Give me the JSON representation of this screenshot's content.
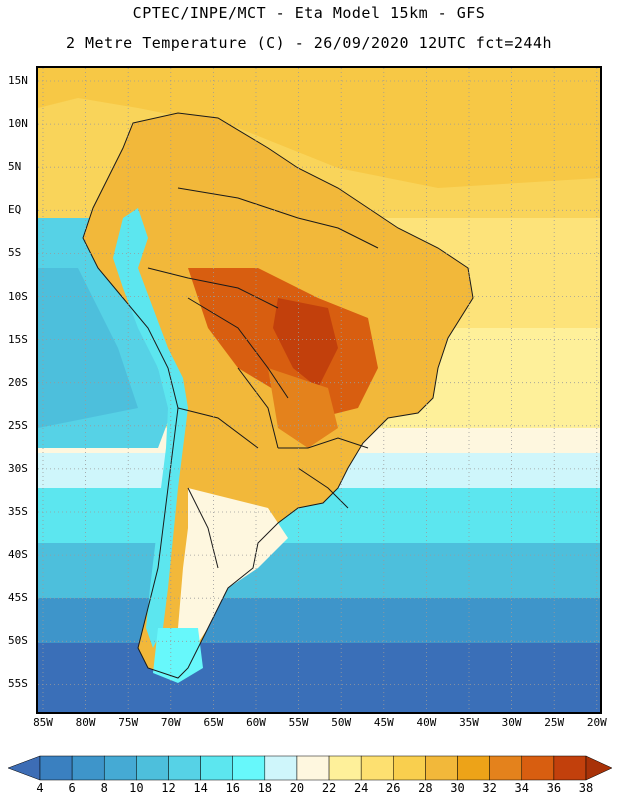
{
  "header": {
    "title_line1": "CPTEC/INPE/MCT -  Eta Model 15km - GFS",
    "title_line2": "2 Metre Temperature (C) - 26/09/2020 12UTC fct=244h"
  },
  "map": {
    "lat_labels": [
      "15N",
      "10N",
      "5N",
      "EQ",
      "5S",
      "10S",
      "15S",
      "20S",
      "25S",
      "30S",
      "35S",
      "40S",
      "45S",
      "50S",
      "55S"
    ],
    "lon_labels": [
      "85W",
      "80W",
      "75W",
      "70W",
      "65W",
      "60W",
      "55W",
      "50W",
      "45W",
      "40W",
      "35W",
      "30W",
      "25W",
      "20W"
    ],
    "lat_range": [
      15,
      -57
    ],
    "lon_range": [
      -86,
      -20
    ]
  },
  "colorbar": {
    "labels": [
      "4",
      "6",
      "8",
      "10",
      "12",
      "14",
      "16",
      "18",
      "20",
      "22",
      "24",
      "26",
      "28",
      "30",
      "32",
      "34",
      "36",
      "38"
    ],
    "colors": [
      "#3d6db5",
      "#3a80c0",
      "#3e95ca",
      "#45aad4",
      "#4dbfdc",
      "#56d2e6",
      "#5ce6ef",
      "#67f8fb",
      "#cff6fb",
      "#fef7df",
      "#fef09a",
      "#fde070",
      "#f9cf4e",
      "#f2b83a",
      "#eda318",
      "#e4821c",
      "#d85e10",
      "#c2400c",
      "#a83208"
    ]
  }
}
